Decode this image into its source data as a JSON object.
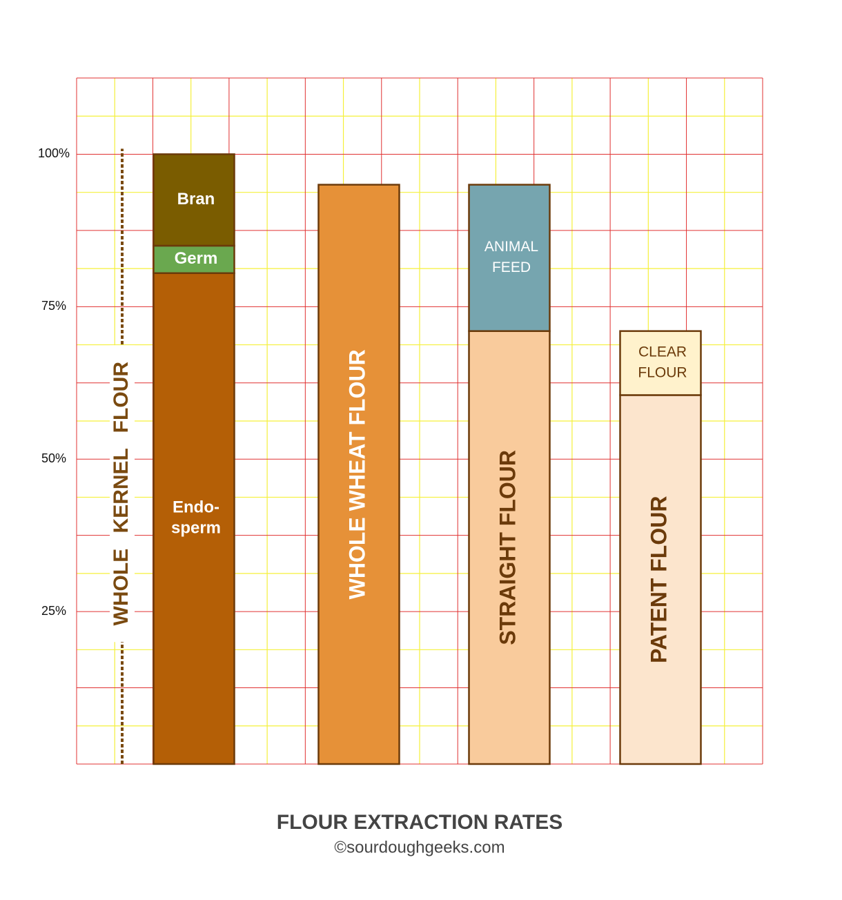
{
  "chart_data": {
    "type": "stacked-bar",
    "title": "FLOUR EXTRACTION RATES",
    "subtitle": "©sourdoughgeeks.com",
    "ylim": [
      0,
      112.5
    ],
    "yticks": [
      {
        "value": 25,
        "label": "25%"
      },
      {
        "value": 50,
        "label": "50%"
      },
      {
        "value": 75,
        "label": "75%"
      },
      {
        "value": 100,
        "label": "100%"
      }
    ],
    "ygrid": [
      0,
      12.5,
      25,
      37.5,
      50,
      62.5,
      75,
      87.5,
      100,
      112.5
    ],
    "ygrid_minor": [
      6.25,
      18.75,
      31.25,
      43.75,
      56.25,
      68.75,
      81.25,
      93.75,
      106.25
    ],
    "grid_color": "#e03030",
    "grid_minor_color": "#f5f03a",
    "outline_color": "#6b3a0a",
    "annotation": {
      "text": "WHOLE KERNEL FLOUR",
      "span": [
        0,
        100
      ],
      "color": "#7a4a10"
    },
    "bars": [
      {
        "segments": [
          {
            "label": [
              "Endo-",
              "sperm"
            ],
            "value": 80.5,
            "color": "#b45f06",
            "label_color": "#ffffff",
            "bold": true,
            "vertical": false
          },
          {
            "label": [
              "Germ"
            ],
            "value": 4.5,
            "color": "#6aa84f",
            "label_color": "#ffffff",
            "bold": true,
            "vertical": false
          },
          {
            "label": [
              "Bran"
            ],
            "value": 15,
            "color": "#7a5c00",
            "label_color": "#ffffff",
            "bold": true,
            "vertical": false
          }
        ]
      },
      {
        "segments": [
          {
            "label": [
              "WHOLE WHEAT FLOUR"
            ],
            "value": 95,
            "color": "#e69138",
            "label_color": "#ffffff",
            "bold": true,
            "vertical": true
          }
        ]
      },
      {
        "segments": [
          {
            "label": [
              "STRAIGHT FLOUR"
            ],
            "value": 71,
            "color": "#f9cb9c",
            "label_color": "#6b3a0a",
            "bold": true,
            "vertical": true
          },
          {
            "label": [
              "ANIMAL",
              "FEED"
            ],
            "value": 24,
            "color": "#76a5af",
            "label_color": "#ffffff",
            "bold": false,
            "vertical": false
          }
        ]
      },
      {
        "segments": [
          {
            "label": [
              "PATENT FLOUR"
            ],
            "value": 60.5,
            "color": "#fce5cd",
            "label_color": "#6b3a0a",
            "bold": true,
            "vertical": true
          },
          {
            "label": [
              "CLEAR",
              "FLOUR"
            ],
            "value": 10.5,
            "color": "#fff2cc",
            "label_color": "#6b3a0a",
            "bold": false,
            "vertical": false
          }
        ]
      }
    ]
  }
}
